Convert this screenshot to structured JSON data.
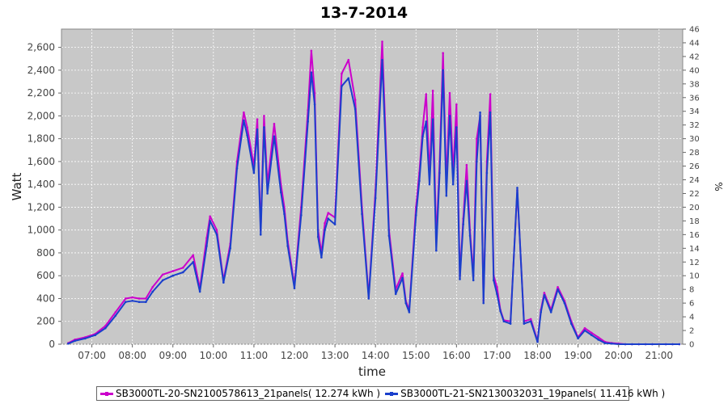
{
  "chart_data": {
    "type": "line",
    "title": "13-7-2014",
    "xlabel": "time",
    "ylabel": "Watt",
    "y2label": "%",
    "x_ticks": [
      "07:00",
      "08:00",
      "09:00",
      "10:00",
      "11:00",
      "12:00",
      "13:00",
      "14:00",
      "15:00",
      "16:00",
      "17:00",
      "18:00",
      "19:00",
      "20:00",
      "21:00"
    ],
    "y_ticks": [
      "0",
      "200",
      "400",
      "600",
      "800",
      "1,000",
      "1,200",
      "1,400",
      "1,600",
      "1,800",
      "2,000",
      "2,200",
      "2,400",
      "2,600"
    ],
    "y2_ticks": [
      "0",
      "2",
      "4",
      "6",
      "8",
      "10",
      "12",
      "14",
      "16",
      "18",
      "20",
      "22",
      "24",
      "26",
      "28",
      "30",
      "32",
      "34",
      "36",
      "38",
      "40",
      "42",
      "44",
      "46"
    ],
    "xlim": [
      "06:15",
      "21:35"
    ],
    "ylim": [
      0,
      2760
    ],
    "y2lim": [
      0,
      46
    ],
    "grid": true,
    "legend_position": "bottom",
    "colors": {
      "plot_background": "#c8c8c8",
      "grid": "#ffffff"
    },
    "series": [
      {
        "name": "SB3000TL-20-SN2100578613_21panels( 12.274 kWh )",
        "color": "#cc00cc",
        "x": [
          "06:25",
          "06:35",
          "06:50",
          "07:05",
          "07:20",
          "07:35",
          "07:50",
          "08:00",
          "08:10",
          "08:20",
          "08:30",
          "08:45",
          "09:00",
          "09:15",
          "09:30",
          "09:40",
          "09:50",
          "09:55",
          "10:05",
          "10:15",
          "10:25",
          "10:35",
          "10:45",
          "10:50",
          "11:00",
          "11:05",
          "11:10",
          "11:15",
          "11:20",
          "11:30",
          "11:40",
          "11:45",
          "11:50",
          "12:00",
          "12:10",
          "12:20",
          "12:25",
          "12:30",
          "12:35",
          "12:40",
          "12:45",
          "12:50",
          "13:00",
          "13:10",
          "13:20",
          "13:30",
          "13:40",
          "13:50",
          "14:00",
          "14:10",
          "14:20",
          "14:30",
          "14:40",
          "14:45",
          "14:50",
          "15:00",
          "15:05",
          "15:10",
          "15:15",
          "15:20",
          "15:25",
          "15:30",
          "15:35",
          "15:40",
          "15:45",
          "15:50",
          "15:55",
          "16:00",
          "16:05",
          "16:10",
          "16:15",
          "16:20",
          "16:25",
          "16:30",
          "16:35",
          "16:40",
          "16:45",
          "16:50",
          "16:55",
          "17:00",
          "17:05",
          "17:10",
          "17:20",
          "17:30",
          "17:40",
          "17:50",
          "18:00",
          "18:05",
          "18:10",
          "18:20",
          "18:30",
          "18:40",
          "18:50",
          "19:00",
          "19:10",
          "19:20",
          "19:30",
          "19:40",
          "19:50",
          "20:00",
          "20:10",
          "20:20",
          "20:30",
          "20:40",
          "20:50",
          "21:00",
          "21:10",
          "21:20",
          "21:30"
        ],
        "y": [
          10,
          40,
          60,
          90,
          160,
          280,
          400,
          410,
          400,
          400,
          500,
          610,
          640,
          670,
          780,
          490,
          930,
          1120,
          1000,
          560,
          880,
          1600,
          2030,
          1900,
          1560,
          1970,
          1000,
          2000,
          1400,
          1930,
          1400,
          1200,
          900,
          520,
          1200,
          2050,
          2570,
          2200,
          1000,
          800,
          1060,
          1150,
          1110,
          2370,
          2490,
          2140,
          1200,
          420,
          1350,
          2650,
          1000,
          480,
          620,
          380,
          300,
          1200,
          1500,
          1900,
          2190,
          1480,
          2220,
          900,
          1600,
          2550,
          1400,
          2200,
          1500,
          2100,
          600,
          1100,
          1570,
          1000,
          600,
          1800,
          2000,
          380,
          1600,
          2190,
          600,
          500,
          300,
          210,
          200,
          1350,
          200,
          220,
          30,
          300,
          450,
          300,
          500,
          380,
          200,
          60,
          140,
          100,
          60,
          20,
          10,
          5,
          0,
          0,
          0,
          0,
          0,
          0,
          0,
          0,
          0
        ]
      },
      {
        "name": "SB3000TL-21-SN2130032031_19panels( 11.416 kWh )",
        "color": "#1a3fcc",
        "x": [
          "06:25",
          "06:35",
          "06:50",
          "07:05",
          "07:20",
          "07:35",
          "07:50",
          "08:00",
          "08:10",
          "08:20",
          "08:30",
          "08:45",
          "09:00",
          "09:15",
          "09:30",
          "09:40",
          "09:50",
          "09:55",
          "10:05",
          "10:15",
          "10:25",
          "10:35",
          "10:45",
          "10:50",
          "11:00",
          "11:05",
          "11:10",
          "11:15",
          "11:20",
          "11:30",
          "11:40",
          "11:45",
          "11:50",
          "12:00",
          "12:10",
          "12:20",
          "12:25",
          "12:30",
          "12:35",
          "12:40",
          "12:45",
          "12:50",
          "13:00",
          "13:10",
          "13:20",
          "13:30",
          "13:40",
          "13:50",
          "14:00",
          "14:10",
          "14:20",
          "14:30",
          "14:40",
          "14:45",
          "14:50",
          "15:00",
          "15:05",
          "15:10",
          "15:15",
          "15:20",
          "15:25",
          "15:30",
          "15:35",
          "15:40",
          "15:45",
          "15:50",
          "15:55",
          "16:00",
          "16:05",
          "16:10",
          "16:15",
          "16:20",
          "16:25",
          "16:30",
          "16:35",
          "16:40",
          "16:45",
          "16:50",
          "16:55",
          "17:00",
          "17:05",
          "17:10",
          "17:20",
          "17:30",
          "17:40",
          "17:50",
          "18:00",
          "18:05",
          "18:10",
          "18:20",
          "18:30",
          "18:40",
          "18:50",
          "19:00",
          "19:10",
          "19:20",
          "19:30",
          "19:40",
          "19:50",
          "20:00",
          "20:10",
          "20:20",
          "20:30",
          "20:40",
          "20:50",
          "21:00",
          "21:10",
          "21:20",
          "21:30"
        ],
        "y": [
          5,
          30,
          50,
          80,
          140,
          250,
          370,
          380,
          370,
          370,
          460,
          560,
          600,
          630,
          720,
          460,
          860,
          1080,
          960,
          540,
          840,
          1540,
          1960,
          1830,
          1500,
          1880,
          960,
          1900,
          1320,
          1820,
          1330,
          1140,
          860,
          490,
          1130,
          1950,
          2380,
          2100,
          940,
          760,
          1000,
          1100,
          1050,
          2260,
          2330,
          2060,
          1140,
          400,
          1280,
          2490,
          950,
          440,
          580,
          360,
          280,
          1130,
          1430,
          1820,
          1950,
          1400,
          1970,
          820,
          1500,
          2400,
          1300,
          2000,
          1400,
          1900,
          570,
          1050,
          1430,
          950,
          560,
          1600,
          2030,
          360,
          1500,
          2030,
          560,
          440,
          290,
          200,
          180,
          1370,
          180,
          200,
          20,
          280,
          430,
          280,
          480,
          360,
          180,
          50,
          120,
          80,
          40,
          10,
          5,
          0,
          0,
          0,
          0,
          0,
          0,
          0,
          0,
          0,
          0
        ]
      }
    ]
  }
}
